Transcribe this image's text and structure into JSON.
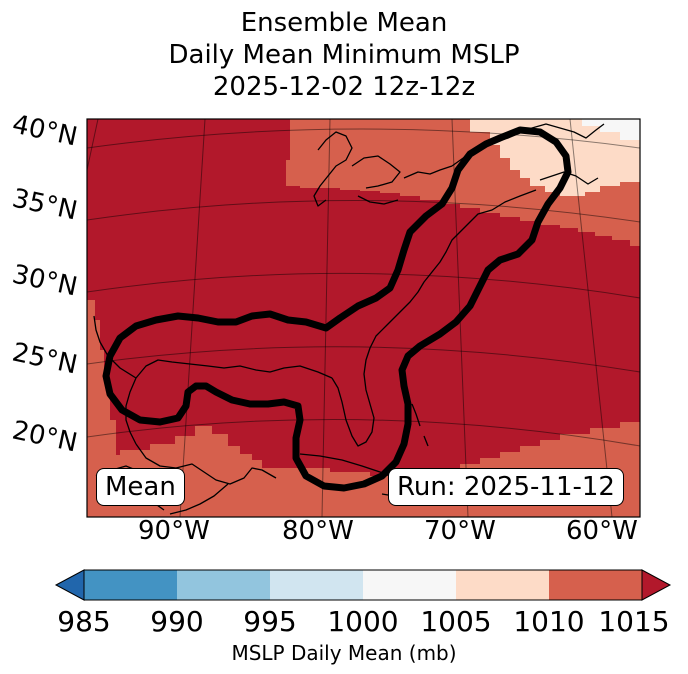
{
  "title": {
    "line1": "Ensemble Mean",
    "line2": "Daily Mean Minimum MSLP",
    "line3": "2025-12-02 12z-12z"
  },
  "map": {
    "lat_labels": [
      "40°N",
      "35°N",
      "30°N",
      "25°N",
      "20°N"
    ],
    "lon_labels": [
      "90°W",
      "80°W",
      "70°W",
      "60°W"
    ],
    "badge_left": "Mean",
    "badge_right": "Run: 2025-11-12",
    "colors": {
      "fill_1010_1015": "#b2182b",
      "fill_1005_1010": "#d6604d",
      "fill_1000_1005": "#fddbc7",
      "fill_995_1000": "#f7f7f7",
      "outline": "#000000"
    }
  },
  "colorbar": {
    "ticks": [
      "985",
      "990",
      "995",
      "1000",
      "1005",
      "1010",
      "1015"
    ],
    "label": "MSLP Daily Mean (mb)",
    "colors": [
      "#2166ac",
      "#4393c3",
      "#92c5de",
      "#d1e5f0",
      "#f7f7f7",
      "#fddbc7",
      "#d6604d",
      "#b2182b"
    ]
  }
}
